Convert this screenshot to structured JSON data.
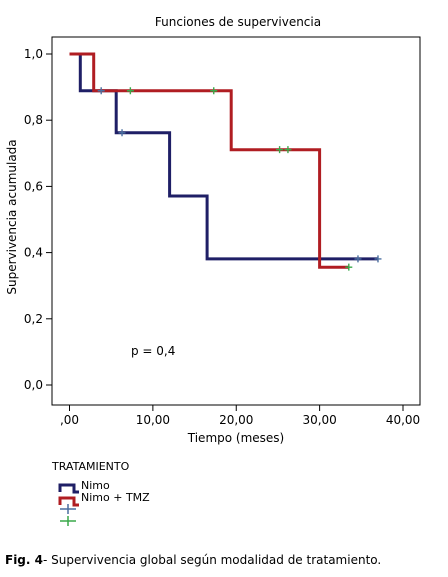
{
  "chart_data": {
    "type": "line",
    "step": true,
    "title": "Funciones de supervivencia",
    "xlabel": "Tiempo (meses)",
    "ylabel": "Supervivencia acumulada",
    "xlim": [
      0,
      40
    ],
    "ylim": [
      0,
      1.0
    ],
    "x_ticks": [
      ",00",
      "10,00",
      "20,00",
      "30,00",
      "40,00"
    ],
    "y_ticks": [
      "0,0",
      "0,2",
      "0,4",
      "0,6",
      "0,8",
      "1,0"
    ],
    "x_tick_values": [
      0,
      10,
      20,
      30,
      40
    ],
    "y_tick_values": [
      0,
      0.2,
      0.4,
      0.6,
      0.8,
      1.0
    ],
    "grid": false,
    "annotation": "p = 0,4",
    "legend": {
      "title": "TRATAMIENTO",
      "placement": "bottom-left",
      "entries": [
        "Nimo",
        "Nimo + TMZ",
        "",
        ""
      ]
    },
    "series": [
      {
        "name": "Nimo",
        "color": "#1f1f66",
        "censor_color": "#4a6fa0",
        "steps": [
          [
            0,
            1.0
          ],
          [
            1.3,
            0.889
          ],
          [
            5.6,
            0.762
          ],
          [
            12.0,
            0.571
          ],
          [
            16.5,
            0.381
          ],
          [
            37.0,
            0.381
          ]
        ],
        "censored": [
          [
            3.8,
            0.889
          ],
          [
            6.3,
            0.762
          ],
          [
            34.6,
            0.381
          ],
          [
            37.0,
            0.381
          ]
        ]
      },
      {
        "name": "Nimo + TMZ",
        "color": "#b01d22",
        "censor_color": "#3aa84a",
        "steps": [
          [
            0,
            1.0
          ],
          [
            2.9,
            0.889
          ],
          [
            19.4,
            0.711
          ],
          [
            30.0,
            0.356
          ],
          [
            33.5,
            0.356
          ]
        ],
        "censored": [
          [
            7.3,
            0.889
          ],
          [
            17.3,
            0.889
          ],
          [
            25.2,
            0.711
          ],
          [
            26.2,
            0.711
          ],
          [
            33.5,
            0.356
          ]
        ]
      }
    ]
  },
  "caption": {
    "label": "Fig. 4",
    "text": "- Supervivencia global según modalidad de tratamiento."
  }
}
